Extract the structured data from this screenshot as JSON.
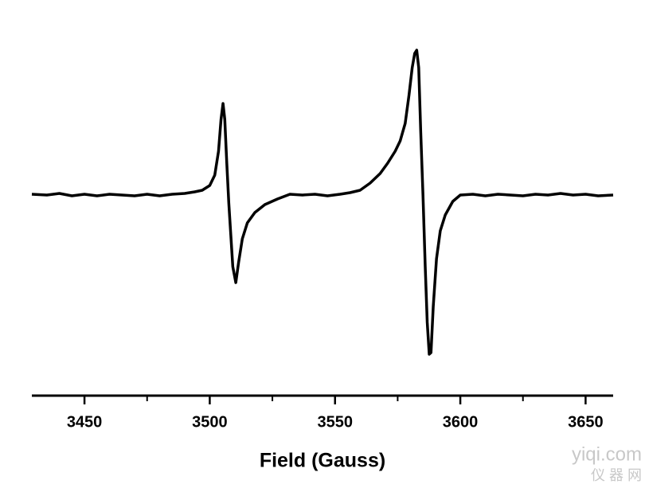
{
  "chart_data": {
    "type": "line",
    "xlabel": "Field (Gauss)",
    "xlim": [
      3429,
      3661
    ],
    "xticks": [
      3450,
      3500,
      3550,
      3600,
      3650
    ],
    "xminorticks": [
      3475,
      3525,
      3575,
      3625
    ],
    "ylim": [
      -252,
      245
    ],
    "series": [
      {
        "color": "#000000",
        "x": [
          3429,
          3435,
          3440,
          3445,
          3450,
          3455,
          3460,
          3465,
          3470,
          3475,
          3480,
          3485,
          3490,
          3494,
          3497,
          3500,
          3502,
          3503.5,
          3504.5,
          3505.3,
          3506,
          3506.8,
          3507.6,
          3508.4,
          3509.2,
          3510.4,
          3511.5,
          3513,
          3515,
          3518,
          3522,
          3527,
          3532,
          3537,
          3542,
          3547,
          3552,
          3556,
          3560,
          3564,
          3568,
          3571,
          3574,
          3576,
          3578,
          3579.5,
          3580.8,
          3581.8,
          3582.6,
          3583.4,
          3584.2,
          3585.1,
          3586,
          3586.8,
          3587.6,
          3588.3,
          3589.2,
          3590.5,
          3592,
          3594,
          3597,
          3600,
          3605,
          3610,
          3615,
          3620,
          3625,
          3630,
          3635,
          3640,
          3645,
          3650,
          3655,
          3661
        ],
        "values": [
          1,
          0,
          2,
          -1,
          1,
          -1,
          1,
          0,
          -1,
          1,
          -1,
          1,
          2,
          4,
          6,
          12,
          25,
          55,
          95,
          115,
          95,
          40,
          -10,
          -50,
          -90,
          -110,
          -85,
          -55,
          -35,
          -22,
          -12,
          -5,
          1,
          0,
          1,
          -1,
          1,
          3,
          6,
          15,
          27,
          40,
          55,
          68,
          90,
          125,
          160,
          178,
          182,
          160,
          80,
          0,
          -90,
          -160,
          -200,
          -198,
          -140,
          -80,
          -45,
          -25,
          -8,
          0,
          1,
          -1,
          1,
          0,
          -1,
          1,
          0,
          2,
          0,
          1,
          -1,
          0
        ]
      }
    ]
  },
  "watermark": [
    "yiqi.com",
    "仪 器 网"
  ]
}
